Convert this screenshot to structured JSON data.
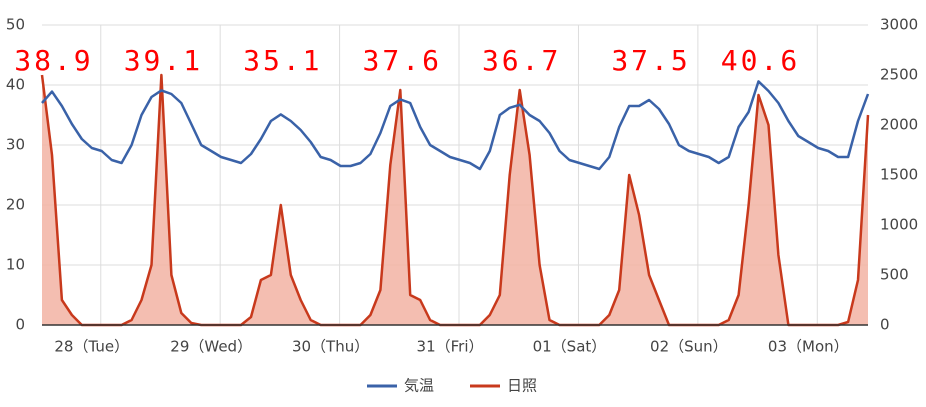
{
  "chart_data": {
    "type": "line",
    "categories": [
      null,
      null,
      null,
      null,
      null,
      "28（Tue）",
      null,
      null,
      null,
      null,
      null,
      null,
      null,
      null,
      null,
      null,
      null,
      "29（Wed）",
      null,
      null,
      null,
      null,
      null,
      null,
      null,
      null,
      null,
      null,
      null,
      "30（Thu）",
      null,
      null,
      null,
      null,
      null,
      null,
      null,
      null,
      null,
      null,
      null,
      "31（Fri）",
      null,
      null,
      null,
      null,
      null,
      null,
      null,
      null,
      null,
      null,
      null,
      "01（Sat）",
      null,
      null,
      null,
      null,
      null,
      null,
      null,
      null,
      null,
      null,
      null,
      "02（Sun）",
      null,
      null,
      null,
      null,
      null,
      null,
      null,
      null,
      null,
      null,
      null,
      "03（Mon）",
      null,
      null,
      null,
      null,
      null,
      null
    ],
    "series": [
      {
        "name": "気温",
        "color": "#3a62a8",
        "values": [
          37,
          38.9,
          36.5,
          33.5,
          31,
          29.5,
          29,
          27.5,
          27,
          30,
          35,
          38,
          39.1,
          38.5,
          37,
          33.5,
          30,
          29,
          28,
          27.5,
          27,
          28.5,
          31,
          34,
          35.1,
          34,
          32.5,
          30.5,
          28,
          27.5,
          26.5,
          26.5,
          27,
          28.5,
          32,
          36.5,
          37.6,
          37,
          33,
          30,
          29,
          28,
          27.5,
          27,
          26,
          29,
          35,
          36.2,
          36.7,
          35,
          34,
          32,
          29,
          27.5,
          27,
          26.5,
          26,
          28,
          33,
          36.5,
          36.5,
          37.5,
          36,
          33.5,
          30,
          29,
          28.5,
          28,
          27,
          28,
          33,
          35.5,
          40.6,
          39,
          37,
          34,
          31.5,
          30.5,
          29.5,
          29,
          28,
          28,
          34,
          38.5
        ],
        "value_labels": [
          null,
          "38.9",
          null,
          null,
          null,
          null,
          null,
          null,
          null,
          null,
          null,
          null,
          "39.1",
          null,
          null,
          null,
          null,
          null,
          null,
          null,
          null,
          null,
          null,
          null,
          "35.1",
          null,
          null,
          null,
          null,
          null,
          null,
          null,
          null,
          null,
          null,
          null,
          "37.6",
          null,
          null,
          null,
          null,
          null,
          null,
          null,
          null,
          null,
          null,
          null,
          "36.7",
          null,
          null,
          null,
          null,
          null,
          null,
          null,
          null,
          null,
          null,
          null,
          null,
          "37.5",
          null,
          null,
          null,
          null,
          null,
          null,
          null,
          null,
          null,
          null,
          "40.6",
          null,
          null,
          null,
          null,
          null,
          null,
          null,
          null,
          null,
          null,
          null
        ]
      },
      {
        "name": "日照",
        "color": "#c8391c",
        "fill": "#f2b3a3",
        "type": "area",
        "axis": "y2",
        "values": [
          2500,
          1700,
          250,
          100,
          0,
          0,
          0,
          0,
          0,
          50,
          250,
          600,
          2500,
          500,
          120,
          20,
          0,
          0,
          0,
          0,
          0,
          80,
          450,
          500,
          1200,
          500,
          250,
          50,
          0,
          0,
          0,
          0,
          0,
          100,
          350,
          1600,
          2350,
          300,
          250,
          50,
          0,
          0,
          0,
          0,
          0,
          100,
          300,
          1500,
          2350,
          1700,
          600,
          50,
          0,
          0,
          0,
          0,
          0,
          100,
          350,
          1500,
          1100,
          500,
          250,
          0,
          0,
          0,
          0,
          0,
          0,
          50,
          300,
          1200,
          2300,
          2000,
          700,
          0,
          0,
          0,
          0,
          0,
          0,
          30,
          450,
          2100
        ]
      }
    ],
    "ylim": [
      0,
      50
    ],
    "yticks": [
      0,
      10,
      20,
      30,
      40,
      50
    ],
    "y2lim": [
      0,
      3000
    ],
    "y2ticks": [
      0,
      500,
      1000,
      1500,
      2000,
      2500,
      3000
    ],
    "grid": true,
    "legend": "bottom",
    "label_color": "#ff0000"
  }
}
